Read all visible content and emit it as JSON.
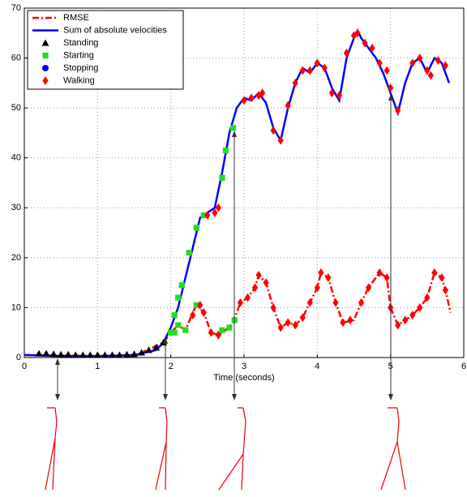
{
  "chart_data": {
    "type": "line",
    "xlabel": "Time (seconds)",
    "xlim": [
      0,
      6
    ],
    "ylim": [
      0,
      70
    ],
    "xticks": [
      0,
      1,
      2,
      3,
      4,
      5,
      6
    ],
    "yticks": [
      0,
      10,
      20,
      30,
      40,
      50,
      60,
      70
    ],
    "grid": true,
    "legend": "upper left",
    "series": [
      {
        "name": "RMSE",
        "color": "#ff0000",
        "style": "dashdot",
        "x": [
          0,
          1,
          1.5,
          1.9,
          2.0,
          2.1,
          2.2,
          2.3,
          2.35,
          2.45,
          2.55,
          2.65,
          2.75,
          2.85,
          2.95,
          3.05,
          3.15,
          3.2,
          3.3,
          3.4,
          3.5,
          3.6,
          3.7,
          3.8,
          3.9,
          4.0,
          4.05,
          4.15,
          4.25,
          4.35,
          4.5,
          4.6,
          4.7,
          4.85,
          4.95,
          5.0,
          5.1,
          5.2,
          5.3,
          5.4,
          5.5,
          5.6,
          5.7,
          5.75,
          5.82
        ],
        "values": [
          0.5,
          0.3,
          0.3,
          3,
          5,
          6.5,
          5.5,
          9,
          10.5,
          9,
          5,
          4.5,
          5.5,
          7,
          11,
          12,
          14,
          16.5,
          15,
          10,
          6,
          7,
          6.5,
          8,
          11,
          14,
          17,
          16,
          11,
          7,
          7.5,
          11,
          14,
          17,
          16,
          10,
          6.5,
          7.5,
          8.5,
          10,
          12,
          17,
          16,
          13.5,
          9
        ]
      },
      {
        "name": "Sum of absolute velocities",
        "color": "#0000ff",
        "style": "solid",
        "x": [
          0,
          0.5,
          1,
          1.5,
          1.8,
          1.9,
          2.0,
          2.1,
          2.2,
          2.3,
          2.4,
          2.5,
          2.6,
          2.7,
          2.8,
          2.9,
          3.0,
          3.1,
          3.2,
          3.3,
          3.4,
          3.5,
          3.6,
          3.7,
          3.8,
          3.9,
          4.0,
          4.1,
          4.2,
          4.3,
          4.4,
          4.5,
          4.55,
          4.6,
          4.7,
          4.8,
          4.9,
          5.0,
          5.1,
          5.2,
          5.3,
          5.4,
          5.5,
          5.6,
          5.7,
          5.8
        ],
        "values": [
          0.5,
          0.3,
          0.3,
          0.5,
          1.5,
          3,
          6,
          10,
          16,
          22,
          28,
          29,
          30,
          37,
          45,
          50,
          52,
          51.5,
          53,
          51,
          46,
          43.5,
          50,
          55,
          58,
          57,
          59,
          58,
          54,
          51.5,
          60,
          64,
          65.5,
          64,
          62,
          60,
          57,
          53,
          49,
          55,
          59,
          60,
          57,
          60,
          59,
          55
        ]
      },
      {
        "name": "Standing",
        "color": "#000000",
        "marker": "triangle",
        "x": [
          0.2,
          0.3,
          0.4,
          0.5,
          0.6,
          0.7,
          0.8,
          0.9,
          1.0,
          1.1,
          1.2,
          1.3,
          1.4,
          1.5,
          1.6,
          1.7,
          1.8,
          1.9
        ],
        "values": [
          0.8,
          0.8,
          0.7,
          0.6,
          0.6,
          0.5,
          0.5,
          0.5,
          0.5,
          0.5,
          0.5,
          0.5,
          0.6,
          0.7,
          1,
          1.5,
          2,
          3
        ]
      },
      {
        "name": "Starting",
        "color": "#22dd22",
        "marker": "square",
        "x": [
          2.0,
          2.05,
          2.1,
          2.15,
          2.25,
          2.35,
          2.45,
          2.7,
          2.75,
          2.85,
          2.05,
          2.1,
          2.2,
          2.35,
          2.7,
          2.8,
          2.87
        ],
        "values": [
          5,
          8.5,
          12,
          14.5,
          21,
          26,
          28.5,
          36,
          41.5,
          46,
          5,
          6.5,
          5.5,
          10.5,
          5.5,
          6,
          7.5
        ]
      },
      {
        "name": "Stopping",
        "color": "#0000ff",
        "marker": "circle",
        "x": [],
        "values": []
      },
      {
        "name": "Walking",
        "color": "#ff0000",
        "marker": "diamond",
        "x": [
          2.5,
          2.6,
          2.65,
          3.0,
          3.1,
          3.2,
          3.25,
          3.4,
          3.5,
          3.6,
          3.7,
          3.8,
          3.9,
          4.0,
          4.1,
          4.2,
          4.3,
          4.4,
          4.5,
          4.55,
          4.65,
          4.75,
          4.85,
          4.95,
          5.0,
          5.1,
          5.3,
          5.4,
          5.5,
          5.55,
          5.65,
          5.75,
          2.3,
          2.4,
          2.45,
          2.55,
          2.65,
          2.95,
          3.05,
          3.15,
          3.2,
          3.3,
          3.4,
          3.5,
          3.6,
          3.7,
          3.8,
          3.9,
          4.0,
          4.05,
          4.15,
          4.25,
          4.35,
          4.45,
          4.6,
          4.7,
          4.85,
          4.95,
          5.0,
          5.1,
          5.2,
          5.3,
          5.4,
          5.5,
          5.6,
          5.7,
          5.75
        ],
        "values": [
          28.5,
          29,
          30,
          51.5,
          52,
          52.5,
          53,
          45.5,
          43.5,
          50.5,
          55,
          57.5,
          57.5,
          59,
          58,
          53,
          52.5,
          61,
          64.5,
          65,
          63,
          62,
          59,
          57.5,
          54,
          49.5,
          59,
          60,
          57.5,
          56.5,
          59.5,
          58.5,
          8.5,
          10.5,
          9,
          5,
          4.5,
          11,
          12,
          14,
          16.5,
          15,
          10,
          6,
          7,
          6.5,
          8,
          11,
          14,
          17,
          16,
          11,
          7,
          7.5,
          11,
          14,
          17,
          16,
          10,
          6.5,
          7.5,
          8.5,
          10,
          12,
          17,
          16,
          13.5
        ]
      }
    ]
  }
}
